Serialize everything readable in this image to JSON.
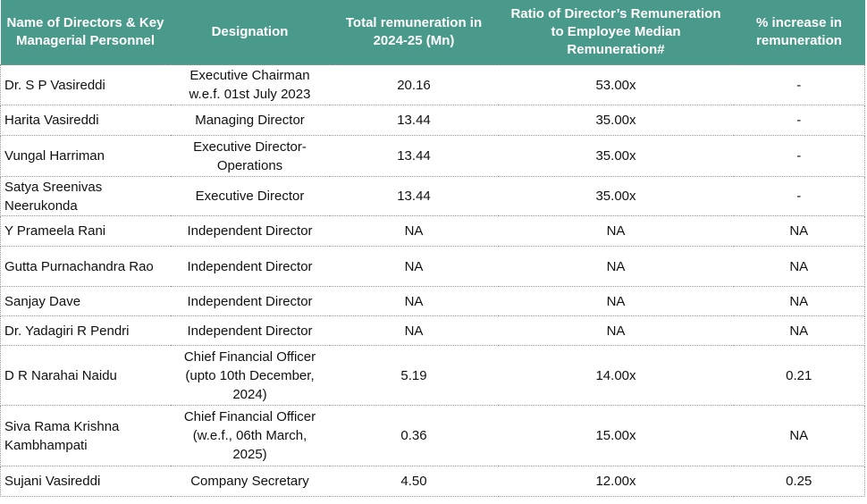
{
  "table": {
    "header": [
      "Name of Directors & Key Managerial Personnel",
      "Designation",
      "Total remuneration in 2024-25 (Mn)",
      "Ratio of Director’s Remuneration to Employee Median Remuneration#",
      "% increase in remuneration"
    ],
    "rows": [
      [
        "Dr. S P Vasireddi",
        "Executive Chairman w.e.f. 01st July 2023",
        "20.16",
        "53.00x",
        "-"
      ],
      [
        "Harita Vasireddi",
        "Managing Director",
        "13.44",
        "35.00x",
        "-"
      ],
      [
        "Vungal Harriman",
        "Executive Director-Operations",
        "13.44",
        "35.00x",
        "-"
      ],
      [
        "Satya Sreenivas Neerukonda",
        "Executive Director",
        "13.44",
        "35.00x",
        "-"
      ],
      [
        "Y Prameela Rani",
        "Independent Director",
        "NA",
        "NA",
        "NA"
      ],
      [
        "Gutta Purnachandra Rao",
        "Independent Director",
        "NA",
        "NA",
        "NA"
      ],
      [
        "Sanjay Dave",
        "Independent Director",
        "NA",
        "NA",
        "NA"
      ],
      [
        "Dr. Yadagiri R Pendri",
        "Independent Director",
        "NA",
        "NA",
        "NA"
      ],
      [
        "D R Narahai Naidu",
        "Chief Financial Officer (upto 10th December, 2024)",
        "5.19",
        "14.00x",
        "0.21"
      ],
      [
        "Siva Rama Krishna Kambhampati",
        "Chief Financial Officer (w.e.f., 06th March, 2025)",
        "0.36",
        "15.00x",
        "NA"
      ],
      [
        "Sujani Vasireddi",
        "Company Secretary",
        "4.50",
        "12.00x",
        "0.25"
      ]
    ]
  }
}
